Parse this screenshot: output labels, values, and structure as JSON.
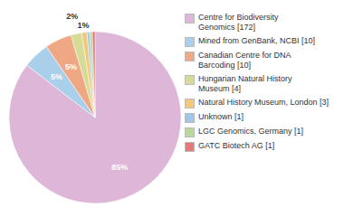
{
  "chart_data": {
    "type": "pie",
    "categories": [
      "Centre for Biodiversity\nGenomics [172]",
      "Mined from GenBank, NCBI [10]",
      "Canadian Centre for DNA\nBarcoding [10]",
      "Hungarian Natural History\nMuseum [4]",
      "Natural History Museum, London [3]",
      "Unknown [1]",
      "LGC Genomics, Germany [1]",
      "GATC Biotech AG [1]"
    ],
    "values": [
      85,
      5,
      5,
      2,
      1,
      0.5,
      0.5,
      0.5
    ],
    "value_labels": [
      "85%",
      "5%",
      "5%",
      "2%",
      "1%",
      null,
      null,
      null
    ],
    "colors": [
      "#ddb6d8",
      "#aacfea",
      "#f0a884",
      "#d4dc96",
      "#f5c77a",
      "#9ec8e8",
      "#b8d89c",
      "#e87878"
    ],
    "data_labels": true,
    "legend": "right"
  }
}
